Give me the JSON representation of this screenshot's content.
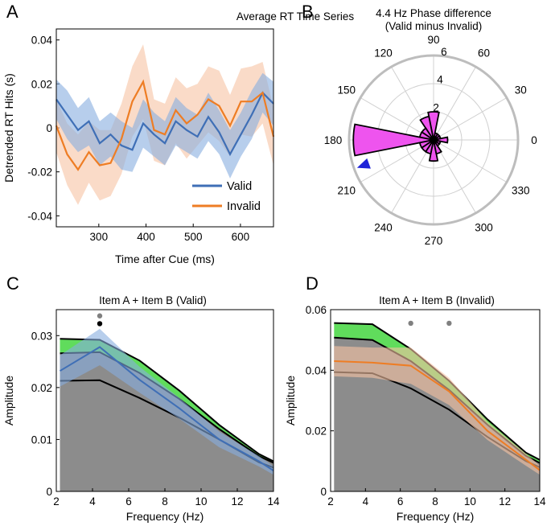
{
  "chart_data": [
    {
      "panel": "A",
      "type": "line",
      "title": "Average RT Time Series",
      "xlabel": "Time after Cue (ms)",
      "ylabel": "Detrended RT Hits (s)",
      "xlim": [
        210,
        670
      ],
      "ylim": [
        -0.045,
        0.045
      ],
      "xticks": [
        300,
        400,
        500,
        600
      ],
      "yticks": [
        -0.04,
        -0.02,
        0,
        0.02,
        0.04
      ],
      "xtick_labels": [
        "300",
        "400",
        "500",
        "600"
      ],
      "ytick_labels": [
        "-0.04",
        "-0.02",
        "0",
        "0.02",
        "0.04"
      ],
      "legend_position": "bottom-right",
      "x": [
        210,
        233,
        256,
        279,
        302,
        325,
        348,
        371,
        394,
        417,
        440,
        463,
        486,
        509,
        532,
        555,
        578,
        601,
        624,
        647,
        670
      ],
      "series": [
        {
          "name": "Valid",
          "color": "#3f6fb6",
          "band_color": "#87aee0",
          "values": [
            0.013,
            0.006,
            -0.001,
            0.003,
            -0.007,
            -0.003,
            -0.008,
            -0.01,
            0.002,
            -0.003,
            -0.007,
            0.003,
            -0.001,
            -0.004,
            0.005,
            -0.002,
            -0.012,
            -0.003,
            0.006,
            0.016,
            0.011
          ],
          "band": [
            0.009,
            0.011,
            0.01,
            0.011,
            0.01,
            0.01,
            0.011,
            0.01,
            0.011,
            0.01,
            0.01,
            0.011,
            0.01,
            0.01,
            0.011,
            0.01,
            0.011,
            0.01,
            0.011,
            0.009,
            0.01
          ]
        },
        {
          "name": "Invalid",
          "color": "#ee7d24",
          "band_color": "#f7c3a4",
          "values": [
            0.001,
            -0.012,
            -0.019,
            -0.011,
            -0.017,
            -0.016,
            -0.005,
            0.012,
            0.021,
            -0.001,
            -0.003,
            0.008,
            0.002,
            0.006,
            0.013,
            0.01,
            0.001,
            0.012,
            0.012,
            0.016,
            -0.004
          ],
          "band": [
            0.012,
            0.014,
            0.016,
            0.014,
            0.016,
            0.015,
            0.016,
            0.016,
            0.017,
            0.014,
            0.014,
            0.015,
            0.016,
            0.014,
            0.015,
            0.016,
            0.014,
            0.015,
            0.016,
            0.014,
            0.013
          ]
        }
      ]
    },
    {
      "panel": "B",
      "type": "polar-histogram",
      "title": "4.4 Hz Phase difference",
      "subtitle": "(Valid minus Invalid)",
      "rlim": [
        0,
        6
      ],
      "rticks": [
        2,
        4,
        6
      ],
      "rtick_labels": [
        "2",
        "4",
        "6"
      ],
      "angle_labels": [
        "0",
        "30",
        "60",
        "90",
        "120",
        "150",
        "180",
        "210",
        "240",
        "270",
        "300",
        "330"
      ],
      "bin_width_deg": 22.5,
      "bar_color": "#ee54ee",
      "mean_arrow": {
        "angle_deg": 200,
        "length": 5.6,
        "color": "#1f24d8"
      },
      "bins": [
        {
          "angle": 0,
          "count": 1
        },
        {
          "angle": 22.5,
          "count": 0.5
        },
        {
          "angle": 45,
          "count": 0.5
        },
        {
          "angle": 67.5,
          "count": 0.5
        },
        {
          "angle": 90,
          "count": 2
        },
        {
          "angle": 112.5,
          "count": 1.7
        },
        {
          "angle": 135,
          "count": 1
        },
        {
          "angle": 157.5,
          "count": 1
        },
        {
          "angle": 180,
          "count": 5.7
        },
        {
          "angle": 202.5,
          "count": 1
        },
        {
          "angle": 225,
          "count": 1
        },
        {
          "angle": 247.5,
          "count": 1
        },
        {
          "angle": 270,
          "count": 1.5
        },
        {
          "angle": 292.5,
          "count": 1
        },
        {
          "angle": 315,
          "count": 0.5
        },
        {
          "angle": 337.5,
          "count": 0.5
        }
      ]
    },
    {
      "panel": "C",
      "type": "line",
      "title": "Item A + Item B (Valid)",
      "xlabel": "Frequency (Hz)",
      "ylabel": "Amplitude",
      "xlim": [
        2,
        14
      ],
      "ylim": [
        0,
        0.035
      ],
      "xticks": [
        2,
        4,
        6,
        8,
        10,
        12,
        14
      ],
      "yticks": [
        0,
        0.01,
        0.02,
        0.03
      ],
      "xtick_labels": [
        "2",
        "4",
        "6",
        "8",
        "10",
        "12",
        "14"
      ],
      "ytick_labels": [
        "0",
        "0.01",
        "0.02",
        "0.03"
      ],
      "x": [
        2.2,
        4.4,
        6.6,
        8.8,
        11.0,
        13.2,
        14.0
      ],
      "surrogate": {
        "mean": [
          0.0213,
          0.0214,
          0.018,
          0.0142,
          0.01,
          0.0056,
          0.0046
        ],
        "p95": [
          0.0266,
          0.0268,
          0.0228,
          0.0178,
          0.012,
          0.0068,
          0.0055
        ],
        "p99": [
          0.0294,
          0.0292,
          0.0252,
          0.0194,
          0.0128,
          0.0072,
          0.0058
        ],
        "fill_color": "#8c8c8c",
        "sig_color": "#4fd84a"
      },
      "series": [
        {
          "name": "Item A + Item B",
          "color": "#3f6fb6",
          "band_color": "#87aee0",
          "values": [
            0.0232,
            0.0278,
            0.0215,
            0.016,
            0.01,
            0.0058,
            0.004
          ],
          "band": [
            0.003,
            0.0035,
            0.0025,
            0.002,
            0.0015,
            0.001,
            0.0008
          ]
        }
      ],
      "significance_markers": [
        {
          "x": 4.4,
          "y": 0.0338,
          "color": "#808080"
        },
        {
          "x": 4.4,
          "y": 0.0323,
          "color": "#000000"
        }
      ]
    },
    {
      "panel": "D",
      "type": "line",
      "title": "Item A + Item B (Invalid)",
      "xlabel": "Frequency (Hz)",
      "ylabel": "Amplitude",
      "xlim": [
        2,
        14
      ],
      "ylim": [
        0,
        0.06
      ],
      "xticks": [
        2,
        4,
        6,
        8,
        10,
        12,
        14
      ],
      "yticks": [
        0,
        0.02,
        0.04,
        0.06
      ],
      "xtick_labels": [
        "2",
        "4",
        "6",
        "8",
        "10",
        "12",
        "14"
      ],
      "ytick_labels": [
        "0",
        "0.02",
        "0.04",
        "0.06"
      ],
      "x": [
        2.2,
        4.4,
        6.6,
        8.8,
        11.0,
        13.2,
        14.0
      ],
      "surrogate": {
        "mean": [
          0.0394,
          0.039,
          0.034,
          0.027,
          0.018,
          0.01,
          0.008
        ],
        "p95": [
          0.0508,
          0.05,
          0.043,
          0.0335,
          0.022,
          0.0118,
          0.0094
        ],
        "p99": [
          0.0556,
          0.0552,
          0.047,
          0.0365,
          0.0238,
          0.0128,
          0.0104
        ],
        "fill_color": "#8c8c8c",
        "sig_color": "#4fd84a"
      },
      "series": [
        {
          "name": "Item A + Item B",
          "color": "#ee7d24",
          "band_color": "#f7c3a4",
          "values": [
            0.043,
            0.0425,
            0.0415,
            0.033,
            0.02,
            0.0105,
            0.007
          ],
          "band": [
            0.005,
            0.005,
            0.006,
            0.0045,
            0.003,
            0.002,
            0.0015
          ]
        }
      ],
      "significance_markers": [
        {
          "x": 6.6,
          "y": 0.0555,
          "color": "#808080"
        },
        {
          "x": 8.8,
          "y": 0.0555,
          "color": "#808080"
        }
      ]
    }
  ]
}
